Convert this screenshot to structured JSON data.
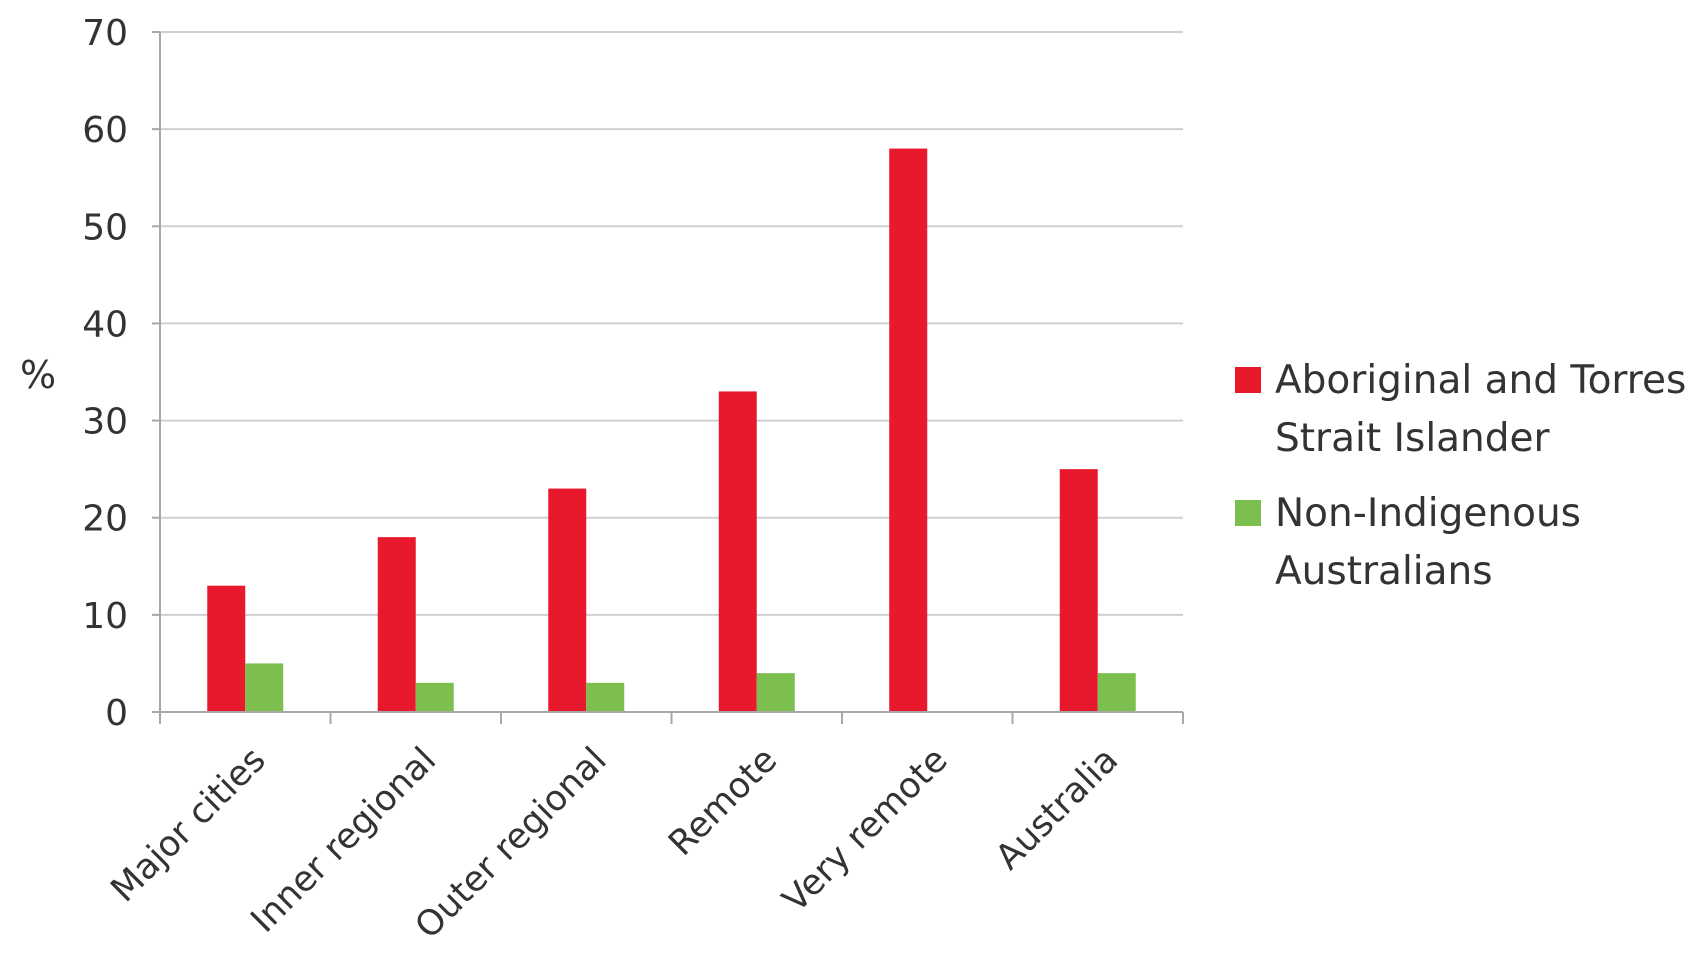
{
  "chart_data": {
    "type": "bar",
    "title": "",
    "xlabel": "",
    "ylabel": "%",
    "ylim": [
      0,
      70
    ],
    "yticks": [
      0,
      10,
      20,
      30,
      40,
      50,
      60,
      70
    ],
    "grid": true,
    "legend_position": "right",
    "categories": [
      "Major cities",
      "Inner regional",
      "Outer regional",
      "Remote",
      "Very remote",
      "Australia"
    ],
    "series": [
      {
        "name": "Aboriginal and Torres Strait Islander",
        "legend_lines": [
          "Aboriginal and Torres",
          "Strait Islander"
        ],
        "color": "#e8192c",
        "values": [
          13,
          18,
          23,
          33,
          58,
          25
        ]
      },
      {
        "name": "Non-Indigenous Australians",
        "legend_lines": [
          "Non-Indigenous",
          "Australians"
        ],
        "color": "#7dbf4e",
        "values": [
          5,
          3,
          3,
          4,
          0,
          4
        ]
      }
    ]
  }
}
